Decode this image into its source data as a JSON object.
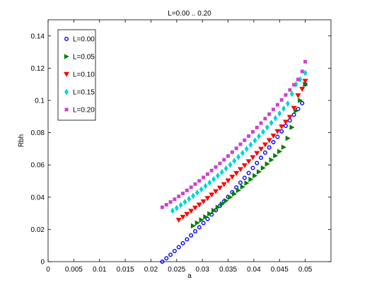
{
  "chart_data": {
    "type": "scatter",
    "title": "L=0.00 .. 0.20",
    "xlabel": "a",
    "ylabel": "Rbh",
    "xlim": [
      0,
      0.055
    ],
    "ylim": [
      0,
      0.15
    ],
    "xticks": [
      "0",
      "0.005",
      "0.01",
      "0.015",
      "0.02",
      "0.025",
      "0.03",
      "0.035",
      "0.04",
      "0.045",
      "0.05"
    ],
    "yticks": [
      "0",
      "0.02",
      "0.04",
      "0.06",
      "0.08",
      "0.1",
      "0.12",
      "0.14"
    ],
    "grid": false,
    "legend_position": "top-left",
    "series": [
      {
        "name": "L=0.00",
        "color": "#0000ff",
        "marker": "circle",
        "x": [
          0.0222,
          0.023,
          0.0238,
          0.0246,
          0.0254,
          0.0262,
          0.027,
          0.0278,
          0.0286,
          0.0294,
          0.0302,
          0.031,
          0.0318,
          0.0326,
          0.0334,
          0.0342,
          0.035,
          0.0358,
          0.0366,
          0.0374,
          0.0382,
          0.039,
          0.0398,
          0.0406,
          0.0414,
          0.0422,
          0.043,
          0.0438,
          0.0446,
          0.0454,
          0.0462,
          0.047,
          0.0478,
          0.0486,
          0.0494,
          0.05
        ],
        "y": [
          0.0,
          0.0021,
          0.0043,
          0.0066,
          0.009,
          0.0114,
          0.0138,
          0.0163,
          0.0188,
          0.0213,
          0.0239,
          0.0265,
          0.0292,
          0.0319,
          0.0346,
          0.0374,
          0.0402,
          0.0431,
          0.046,
          0.049,
          0.052,
          0.055,
          0.0581,
          0.0612,
          0.0644,
          0.0676,
          0.0708,
          0.0741,
          0.0774,
          0.0808,
          0.0842,
          0.0876,
          0.0911,
          0.0947,
          0.0983,
          0.11
        ]
      },
      {
        "name": "L=0.05",
        "color": "#007f00",
        "marker": "triangle-right",
        "x": [
          0.0282,
          0.029,
          0.0298,
          0.0306,
          0.0314,
          0.0322,
          0.033,
          0.0338,
          0.0346,
          0.0354,
          0.0362,
          0.037,
          0.0378,
          0.0386,
          0.0394,
          0.0402,
          0.041,
          0.0418,
          0.0426,
          0.0434,
          0.0442,
          0.045,
          0.0458,
          0.0466,
          0.0474,
          0.0482,
          0.049,
          0.05
        ],
        "y": [
          0.0222,
          0.024,
          0.0259,
          0.0278,
          0.0297,
          0.0317,
          0.0337,
          0.0357,
          0.0378,
          0.0399,
          0.042,
          0.0442,
          0.0464,
          0.0487,
          0.051,
          0.0533,
          0.0557,
          0.0581,
          0.0606,
          0.0631,
          0.0657,
          0.0683,
          0.071,
          0.0765,
          0.0833,
          0.0935,
          0.1,
          0.11
        ]
      },
      {
        "name": "L=0.10",
        "color": "#ff0000",
        "marker": "triangle-down",
        "x": [
          0.0254,
          0.0262,
          0.027,
          0.0278,
          0.0286,
          0.0294,
          0.0302,
          0.031,
          0.0318,
          0.0326,
          0.0334,
          0.0342,
          0.035,
          0.0358,
          0.0366,
          0.0374,
          0.0382,
          0.039,
          0.0398,
          0.0406,
          0.0414,
          0.0422,
          0.043,
          0.0438,
          0.0446,
          0.0454,
          0.0462,
          0.047,
          0.0478,
          0.0486,
          0.0494,
          0.05
        ],
        "y": [
          0.0258,
          0.0276,
          0.0294,
          0.0313,
          0.0333,
          0.0352,
          0.0372,
          0.0393,
          0.0414,
          0.0435,
          0.0457,
          0.0479,
          0.0502,
          0.0525,
          0.0548,
          0.0572,
          0.0596,
          0.0621,
          0.0646,
          0.0672,
          0.0698,
          0.0725,
          0.0752,
          0.078,
          0.0808,
          0.0837,
          0.0866,
          0.0896,
          0.0952,
          0.103,
          0.107,
          0.112
        ]
      },
      {
        "name": "L=0.15",
        "color": "#00d5d5",
        "marker": "diamond",
        "x": [
          0.0242,
          0.025,
          0.0258,
          0.0266,
          0.0274,
          0.0282,
          0.029,
          0.0298,
          0.0306,
          0.0314,
          0.0322,
          0.033,
          0.0338,
          0.0346,
          0.0354,
          0.0362,
          0.037,
          0.0378,
          0.0386,
          0.0394,
          0.0402,
          0.041,
          0.0418,
          0.0426,
          0.0434,
          0.0442,
          0.045,
          0.0458,
          0.0466,
          0.0474,
          0.0482,
          0.049,
          0.05
        ],
        "y": [
          0.0316,
          0.0333,
          0.0351,
          0.037,
          0.0389,
          0.0408,
          0.0428,
          0.0448,
          0.0469,
          0.049,
          0.0511,
          0.0533,
          0.0555,
          0.0578,
          0.0601,
          0.0625,
          0.0649,
          0.0674,
          0.0699,
          0.0725,
          0.0751,
          0.0778,
          0.0805,
          0.0833,
          0.0861,
          0.089,
          0.0919,
          0.0949,
          0.098,
          0.104,
          0.11,
          0.113,
          0.117
        ]
      },
      {
        "name": "L=0.20",
        "color": "#cc44cc",
        "marker": "square",
        "x": [
          0.0222,
          0.023,
          0.0238,
          0.0246,
          0.0254,
          0.0262,
          0.027,
          0.0278,
          0.0286,
          0.0294,
          0.0302,
          0.031,
          0.0318,
          0.0326,
          0.0334,
          0.0342,
          0.035,
          0.0358,
          0.0366,
          0.0374,
          0.0382,
          0.039,
          0.0398,
          0.0406,
          0.0414,
          0.0422,
          0.043,
          0.0438,
          0.0446,
          0.0454,
          0.0462,
          0.047,
          0.0478,
          0.0486,
          0.0494,
          0.05
        ],
        "y": [
          0.0337,
          0.0353,
          0.037,
          0.0387,
          0.0405,
          0.0423,
          0.0442,
          0.0461,
          0.0481,
          0.0501,
          0.0522,
          0.0543,
          0.0565,
          0.0587,
          0.0609,
          0.0632,
          0.0655,
          0.0679,
          0.0703,
          0.0728,
          0.0753,
          0.0779,
          0.0805,
          0.0832,
          0.0859,
          0.0887,
          0.0915,
          0.0944,
          0.0973,
          0.1003,
          0.1034,
          0.1065,
          0.1097,
          0.113,
          0.118,
          0.124
        ]
      }
    ]
  }
}
